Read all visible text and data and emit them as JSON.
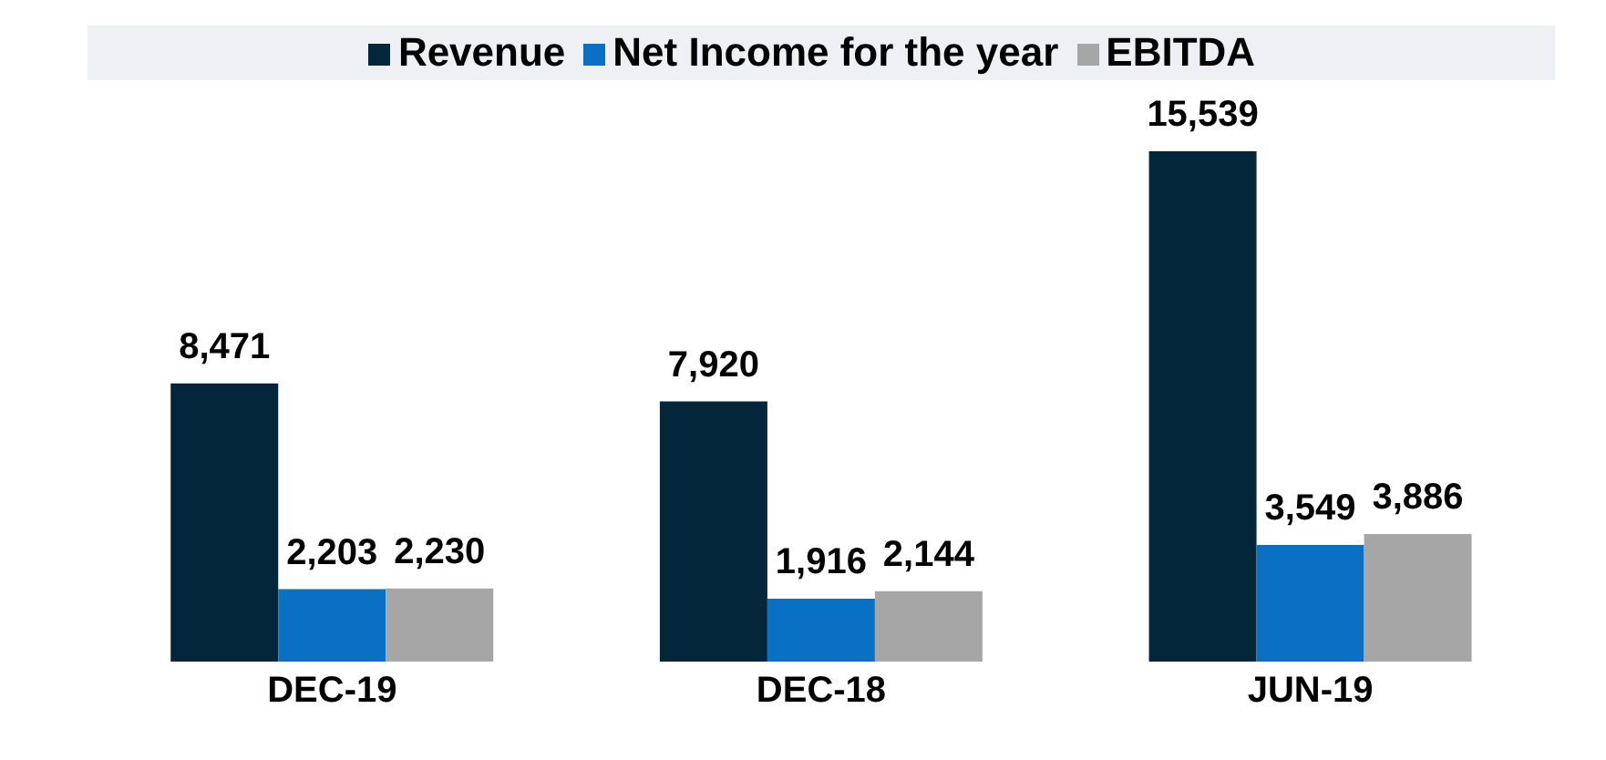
{
  "chart_data": {
    "type": "bar",
    "categories": [
      "DEC-19",
      "DEC-18",
      "JUN-19"
    ],
    "series": [
      {
        "name": "Revenue",
        "color": "#03263a",
        "values": [
          8471,
          7920,
          15539
        ],
        "value_labels": [
          "8,471",
          "7,920",
          "15,539"
        ]
      },
      {
        "name": "Net Income for the year",
        "color": "#0a70c4",
        "values": [
          2203,
          1916,
          3549
        ],
        "value_labels": [
          "2,203",
          "1,916",
          "3,549"
        ]
      },
      {
        "name": "EBITDA",
        "color": "#a6a6a6",
        "values": [
          2230,
          2144,
          3886
        ],
        "value_labels": [
          "2,230",
          "2,144",
          "3,886"
        ]
      }
    ],
    "legend": "top",
    "grid": false
  }
}
